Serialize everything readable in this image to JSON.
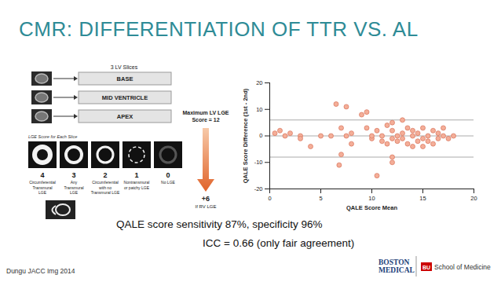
{
  "slide": {
    "title": "CMR: DIFFERENTIATION OF TTR VS. AL",
    "diagram": {
      "header": "3 LV Slices",
      "slices": [
        "BASE",
        "MID VENTRICLE",
        "APEX"
      ],
      "score_header": "LGE Score for Each Slice",
      "scores": [
        {
          "score": "4",
          "lines": [
            "Circumferential",
            "Transmural",
            "LGE"
          ]
        },
        {
          "score": "3",
          "lines": [
            "Any",
            "Transmural",
            "LGE"
          ]
        },
        {
          "score": "2",
          "lines": [
            "Circumferential",
            "with no",
            "Transmural LGE"
          ]
        },
        {
          "score": "1",
          "lines": [
            "Nontransmural",
            "or patchy LGE"
          ]
        },
        {
          "score": "0",
          "lines": [
            "No LGE"
          ]
        }
      ],
      "max_score": [
        "Maximum LV LGE",
        "Score = 12"
      ],
      "rv_score": "+6",
      "rv_text": "If RV LGE"
    },
    "captions": [
      "QALE score sensitivity 87%, specificity 96%",
      "ICC = 0.66 (only fair agreement)"
    ],
    "footer": "Dungu JACC Img 2014",
    "logos": [
      "BOSTON",
      "MEDICAL",
      "BU",
      "School of Medicine"
    ]
  },
  "chart_data": {
    "type": "scatter",
    "xlabel": "QALE Score Mean",
    "ylabel": "QALE Score Difference (1st - 2nd)",
    "x": [
      0.5,
      1,
      1.5,
      2,
      3,
      3,
      4,
      5,
      6,
      6.5,
      6.8,
      7,
      7.5,
      7,
      7.5,
      8,
      8,
      9,
      9.5,
      9.5,
      10,
      10,
      10.5,
      10.5,
      11,
      11,
      11.5,
      11.5,
      12,
      12,
      12,
      12,
      12.5,
      12.5,
      13,
      13,
      13,
      13.5,
      13.5,
      14,
      14,
      14,
      14.5,
      14.5,
      15,
      15,
      15,
      15.5,
      15.5,
      16,
      16,
      16.5,
      16.5,
      17,
      17,
      17.5,
      18,
      12
    ],
    "values": [
      1,
      2,
      0,
      1,
      0,
      -1,
      -4,
      0,
      0,
      12,
      -11,
      -7,
      11,
      3,
      0,
      1,
      -3,
      8,
      9,
      3,
      -1,
      0,
      -15,
      2,
      0,
      -2,
      -3,
      4,
      5,
      2,
      -1,
      -8,
      0,
      -2,
      6,
      1,
      -1,
      3,
      -3,
      0,
      2,
      -4,
      1,
      -2,
      3,
      -1,
      -4,
      0,
      -2,
      2,
      -3,
      1,
      -1,
      0,
      3,
      -1,
      0,
      -10
    ],
    "hlines": [
      6,
      0,
      -8
    ],
    "color": "#f4ae98",
    "marker": "circle",
    "xlim": [
      0,
      20
    ],
    "ylim": [
      -20,
      20
    ],
    "xticks": [
      0,
      5,
      10,
      15,
      20
    ],
    "yticks": [
      -20,
      -10,
      0,
      10,
      20
    ],
    "grid": false
  }
}
